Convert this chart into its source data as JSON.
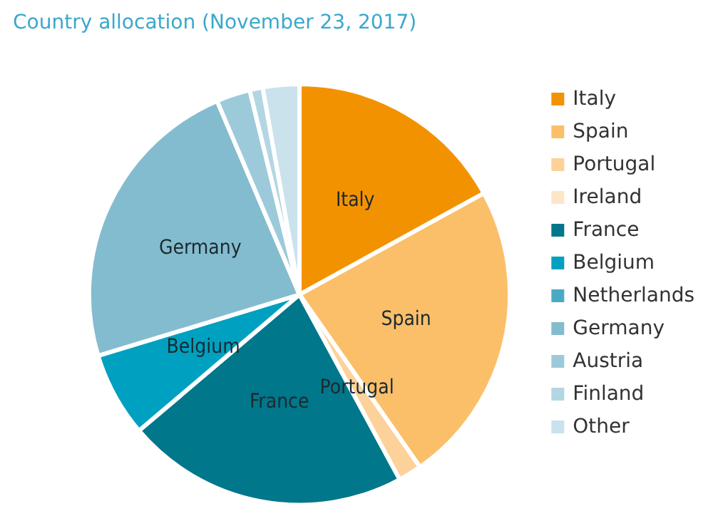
{
  "chart_data": {
    "type": "pie",
    "title": "Country allocation (November 23, 2017)",
    "categories": [
      "Italy",
      "Spain",
      "Portugal",
      "Ireland",
      "France",
      "Belgium",
      "Netherlands",
      "Germany",
      "Austria",
      "Finland",
      "Other"
    ],
    "values": [
      17,
      23.3,
      1.8,
      null,
      21.7,
      6.5,
      null,
      23.3,
      2.6,
      1.0,
      2.8
    ],
    "colors": [
      "#f39200",
      "#fbbf6a",
      "#fcd29a",
      "#fde6c8",
      "#00778b",
      "#00a0c0",
      "#4aaac4",
      "#84bccf",
      "#9ccadb",
      "#b3d6e3",
      "#c9e2ec"
    ],
    "annotations": [
      {
        "text": "Italy",
        "x": "Italy"
      },
      {
        "text": "Spain",
        "x": "Spain"
      },
      {
        "text": "Portugal",
        "x": "Portugal"
      },
      {
        "text": "France",
        "x": "France"
      },
      {
        "text": "Belgium",
        "x": "Belgium"
      },
      {
        "text": "Germany",
        "x": "Germany"
      }
    ],
    "legend": "right"
  }
}
